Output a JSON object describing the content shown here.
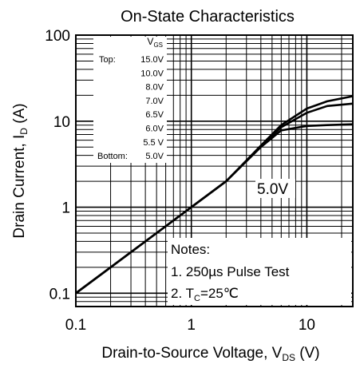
{
  "chart_data": {
    "type": "line",
    "title": "On-State Characteristics",
    "xlabel": "Drain-to-Source Voltage, V",
    "xlabel_sub": "DS",
    "xlabel_unit": " (V)",
    "ylabel": "Drain Current, I",
    "ylabel_sub": "D",
    "ylabel_unit": " (A)",
    "x_scale": "log",
    "y_scale": "log",
    "xlim": [
      0.1,
      25
    ],
    "ylim": [
      0.07,
      100
    ],
    "grid": true,
    "x_ticks": [
      {
        "v": 0.1,
        "label": "0.1"
      },
      {
        "v": 1,
        "label": "1"
      },
      {
        "v": 10,
        "label": "10"
      }
    ],
    "y_ticks": [
      {
        "v": 0.1,
        "label": "0.1"
      },
      {
        "v": 1,
        "label": "1"
      },
      {
        "v": 10,
        "label": "10"
      },
      {
        "v": 100,
        "label": "100"
      }
    ],
    "legend": {
      "header": "V",
      "header_sub": "GS",
      "top_label": "Top:",
      "bottom_label": "Bottom:",
      "entries": [
        "15.0V",
        "10.0V",
        "8.0V",
        "7.0V",
        "6.5V",
        "6.0V",
        "5.5 V",
        "5.0V"
      ]
    },
    "annotation": "5.0V",
    "notes": {
      "title": "Notes:",
      "line1": "1. 250µs Pulse Test",
      "line2_prefix": "2. T",
      "line2_sub": "C",
      "line2_suffix": "=25℃"
    },
    "series": [
      {
        "name": "15.0V",
        "x": [
          0.1,
          0.5,
          1,
          2,
          4,
          6,
          10,
          15,
          25
        ],
        "y": [
          0.1,
          0.5,
          1,
          2,
          5.2,
          9,
          14,
          17,
          19.5
        ]
      },
      {
        "name": "8.0V",
        "x": [
          0.1,
          0.5,
          1,
          2,
          4,
          6,
          10,
          15,
          25
        ],
        "y": [
          0.1,
          0.5,
          1,
          2,
          5.1,
          8.5,
          12.5,
          15,
          16
        ]
      },
      {
        "name": "5.0V",
        "x": [
          0.1,
          0.5,
          1,
          2,
          4,
          6,
          10,
          15,
          25
        ],
        "y": [
          0.1,
          0.5,
          1,
          2,
          5,
          7.8,
          8.8,
          9,
          9.2
        ]
      }
    ]
  }
}
